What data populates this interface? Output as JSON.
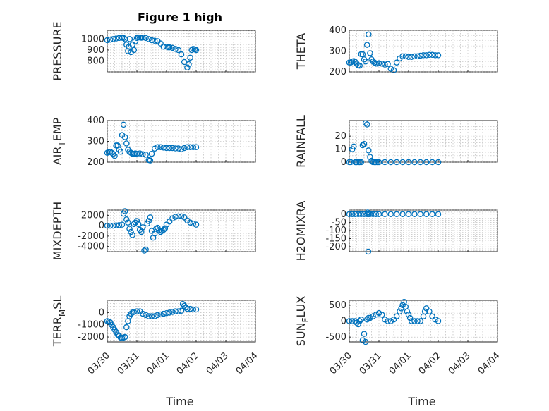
{
  "title": "Figure 1 high",
  "xlabel": "Time",
  "x_tick_labels": [
    "03/30",
    "03/31",
    "04/01",
    "04/02",
    "04/03",
    "04/04"
  ],
  "colors": {
    "marker": "#0072bd",
    "axis": "#262626",
    "grid": "#b0b0b0"
  },
  "chart_data": [
    {
      "type": "scatter",
      "panel": "PRESSURE",
      "ylabel": "PRESSURE",
      "ylabel_sub": "",
      "yticks": [
        800,
        900,
        1000
      ],
      "ytick_labels": [
        "800",
        "900",
        "1000"
      ],
      "ylim": [
        700,
        1080
      ],
      "xlim": [
        0,
        5
      ],
      "x": [
        0,
        0.1,
        0.2,
        0.3,
        0.4,
        0.5,
        0.55,
        0.6,
        0.65,
        0.7,
        0.73,
        0.76,
        0.8,
        0.85,
        0.9,
        0.95,
        1.0,
        1.05,
        1.1,
        1.15,
        1.2,
        1.3,
        1.4,
        1.5,
        1.6,
        1.7,
        1.8,
        1.9,
        2.0,
        2.05,
        2.1,
        2.2,
        2.3,
        2.4,
        2.5,
        2.6,
        2.7,
        2.75,
        2.8,
        2.85,
        2.9,
        2.95,
        3.0
      ],
      "y": [
        990,
        995,
        1000,
        1005,
        1010,
        1012,
        1010,
        1000,
        950,
        890,
        930,
        1000,
        880,
        950,
        900,
        980,
        1010,
        1015,
        1015,
        1012,
        1015,
        1010,
        1000,
        990,
        985,
        980,
        960,
        930,
        930,
        925,
        925,
        920,
        910,
        900,
        860,
        790,
        740,
        770,
        830,
        900,
        910,
        905,
        900
      ]
    },
    {
      "type": "scatter",
      "panel": "THETA",
      "ylabel": "THETA",
      "ylabel_sub": "",
      "yticks": [
        200,
        300,
        400
      ],
      "ytick_labels": [
        "200",
        "300",
        "400"
      ],
      "ylim": [
        200,
        400
      ],
      "xlim": [
        0,
        5
      ],
      "x": [
        0,
        0.05,
        0.1,
        0.15,
        0.2,
        0.25,
        0.3,
        0.35,
        0.4,
        0.45,
        0.5,
        0.55,
        0.6,
        0.65,
        0.7,
        0.75,
        0.8,
        0.85,
        0.9,
        0.95,
        1.0,
        1.1,
        1.2,
        1.3,
        1.4,
        1.5,
        1.6,
        1.7,
        1.8,
        1.9,
        2.0,
        2.1,
        2.2,
        2.3,
        2.4,
        2.5,
        2.6,
        2.7,
        2.8,
        2.9,
        3.0
      ],
      "y": [
        245,
        245,
        250,
        252,
        248,
        240,
        232,
        230,
        285,
        285,
        260,
        250,
        330,
        380,
        290,
        260,
        250,
        245,
        240,
        240,
        242,
        240,
        235,
        238,
        215,
        208,
        245,
        265,
        275,
        275,
        272,
        272,
        275,
        275,
        278,
        280,
        280,
        282,
        282,
        280,
        280
      ]
    },
    {
      "type": "scatter",
      "panel": "AIR_TEMP",
      "ylabel": "AIR",
      "ylabel_sub": "T",
      "ylabel_tail": "EMP",
      "yticks": [
        200,
        300,
        400
      ],
      "ytick_labels": [
        "200",
        "300",
        "400"
      ],
      "ylim": [
        200,
        400
      ],
      "xlim": [
        0,
        5
      ],
      "x": [
        0,
        0.05,
        0.1,
        0.15,
        0.2,
        0.25,
        0.3,
        0.35,
        0.4,
        0.45,
        0.5,
        0.55,
        0.6,
        0.65,
        0.7,
        0.75,
        0.8,
        0.85,
        0.9,
        0.95,
        1.0,
        1.1,
        1.2,
        1.3,
        1.4,
        1.45,
        1.5,
        1.6,
        1.7,
        1.8,
        1.9,
        2.0,
        2.1,
        2.2,
        2.3,
        2.4,
        2.5,
        2.6,
        2.7,
        2.8,
        2.9,
        3.0
      ],
      "y": [
        245,
        248,
        250,
        245,
        240,
        230,
        280,
        280,
        260,
        250,
        330,
        380,
        320,
        290,
        260,
        250,
        245,
        240,
        240,
        242,
        240,
        242,
        238,
        236,
        210,
        208,
        240,
        265,
        272,
        272,
        270,
        268,
        268,
        268,
        266,
        266,
        262,
        268,
        272,
        272,
        272,
        272
      ]
    },
    {
      "type": "scatter",
      "panel": "RAINFALL",
      "ylabel": "RAINFALL",
      "ylabel_sub": "",
      "yticks": [
        0,
        10,
        20
      ],
      "ytick_labels": [
        "0",
        "10",
        "20"
      ],
      "ylim": [
        0,
        32
      ],
      "xlim": [
        0,
        5
      ],
      "x": [
        0,
        0.05,
        0.1,
        0.15,
        0.2,
        0.25,
        0.3,
        0.35,
        0.4,
        0.45,
        0.5,
        0.55,
        0.6,
        0.65,
        0.7,
        0.75,
        0.8,
        0.85,
        0.9,
        0.95,
        1.0,
        1.2,
        1.4,
        1.6,
        1.8,
        2.0,
        2.2,
        2.4,
        2.6,
        2.8,
        3.0
      ],
      "y": [
        0,
        0,
        10,
        12,
        0,
        0,
        0,
        0,
        0,
        13,
        14,
        30,
        29,
        9,
        4,
        1,
        0,
        0,
        0,
        0,
        0,
        0,
        0,
        0,
        0,
        0,
        0,
        0,
        0,
        0,
        0
      ]
    },
    {
      "type": "scatter",
      "panel": "MIXDEPTH",
      "ylabel": "MIXDEPTH",
      "ylabel_sub": "",
      "yticks": [
        -4000,
        -2000,
        0,
        2000
      ],
      "ytick_labels": [
        "-4000",
        "-2000",
        "0",
        "2000"
      ],
      "ylim": [
        -5000,
        3000
      ],
      "xlim": [
        0,
        5
      ],
      "x": [
        0,
        0.1,
        0.2,
        0.3,
        0.4,
        0.5,
        0.55,
        0.6,
        0.65,
        0.7,
        0.75,
        0.8,
        0.85,
        0.9,
        0.95,
        1.0,
        1.05,
        1.1,
        1.15,
        1.2,
        1.25,
        1.3,
        1.35,
        1.4,
        1.45,
        1.5,
        1.55,
        1.6,
        1.65,
        1.7,
        1.75,
        1.8,
        1.85,
        1.9,
        1.95,
        2.0,
        2.1,
        2.2,
        2.3,
        2.4,
        2.5,
        2.6,
        2.7,
        2.8,
        2.9,
        3.0
      ],
      "y": [
        0,
        0,
        0,
        50,
        100,
        200,
        2300,
        2800,
        1200,
        600,
        -600,
        -1200,
        -1800,
        300,
        600,
        900,
        300,
        -800,
        -1200,
        -300,
        -4800,
        -4600,
        400,
        900,
        1600,
        -1000,
        -2300,
        -1500,
        -600,
        -400,
        -900,
        -1200,
        -1000,
        -800,
        -500,
        200,
        800,
        1400,
        1700,
        1800,
        1800,
        1600,
        1000,
        600,
        400,
        200
      ]
    },
    {
      "type": "scatter",
      "panel": "H2OMIXRA",
      "ylabel": "H2OMIXRA",
      "ylabel_sub": "",
      "yticks": [
        -200,
        -150,
        -100,
        -50,
        0
      ],
      "ytick_labels": [
        "-200",
        "-150",
        "-100",
        "-50",
        "0"
      ],
      "ylim": [
        -230,
        25
      ],
      "xlim": [
        0,
        5
      ],
      "x": [
        0,
        0.1,
        0.2,
        0.3,
        0.4,
        0.5,
        0.6,
        0.62,
        0.64,
        0.66,
        0.7,
        0.8,
        0.9,
        1.0,
        1.2,
        1.4,
        1.6,
        1.8,
        2.0,
        2.2,
        2.4,
        2.6,
        2.8,
        3.0
      ],
      "y": [
        0,
        0,
        0,
        0,
        0,
        0,
        0,
        10,
        -230,
        0,
        0,
        0,
        0,
        0,
        0,
        0,
        0,
        0,
        0,
        0,
        0,
        0,
        0,
        0
      ]
    },
    {
      "type": "scatter",
      "panel": "TERR_MSL",
      "ylabel": "TERR",
      "ylabel_sub": "M",
      "ylabel_tail": "SL",
      "yticks": [
        -2000,
        -1000,
        0
      ],
      "ytick_labels": [
        "-2000",
        "-1000",
        "0"
      ],
      "ylim": [
        -2400,
        1000
      ],
      "xlim": [
        0,
        5
      ],
      "x": [
        0,
        0.05,
        0.1,
        0.15,
        0.2,
        0.25,
        0.3,
        0.35,
        0.4,
        0.45,
        0.5,
        0.55,
        0.6,
        0.65,
        0.7,
        0.75,
        0.8,
        0.85,
        0.9,
        1.0,
        1.1,
        1.2,
        1.3,
        1.4,
        1.5,
        1.6,
        1.7,
        1.8,
        1.9,
        2.0,
        2.1,
        2.2,
        2.3,
        2.4,
        2.5,
        2.55,
        2.6,
        2.65,
        2.7,
        2.8,
        2.9,
        3.0
      ],
      "y": [
        -700,
        -750,
        -800,
        -1000,
        -1200,
        -1400,
        -1600,
        -1800,
        -1900,
        -2050,
        -2100,
        -2050,
        -2000,
        -1200,
        -700,
        -300,
        -100,
        0,
        50,
        100,
        100,
        -100,
        -200,
        -300,
        -300,
        -300,
        -200,
        -150,
        -100,
        -50,
        0,
        50,
        100,
        100,
        150,
        700,
        550,
        400,
        300,
        300,
        250,
        250
      ]
    },
    {
      "type": "scatter",
      "panel": "SUN_FLUX",
      "ylabel": "SUN",
      "ylabel_sub": "F",
      "ylabel_tail": "LUX",
      "yticks": [
        -500,
        0,
        500
      ],
      "ytick_labels": [
        "-500",
        "0",
        "500"
      ],
      "ylim": [
        -650,
        650
      ],
      "xlim": [
        0,
        5
      ],
      "x": [
        0,
        0.1,
        0.2,
        0.25,
        0.3,
        0.35,
        0.4,
        0.45,
        0.5,
        0.55,
        0.6,
        0.65,
        0.7,
        0.8,
        0.9,
        1.0,
        1.1,
        1.2,
        1.3,
        1.4,
        1.5,
        1.6,
        1.7,
        1.75,
        1.8,
        1.85,
        1.9,
        1.95,
        2.0,
        2.05,
        2.1,
        2.2,
        2.3,
        2.4,
        2.5,
        2.55,
        2.6,
        2.7,
        2.8,
        2.9,
        3.0
      ],
      "y": [
        0,
        0,
        0,
        -50,
        -100,
        0,
        50,
        -600,
        -400,
        -650,
        50,
        100,
        100,
        150,
        200,
        250,
        200,
        50,
        0,
        0,
        50,
        150,
        300,
        400,
        500,
        600,
        450,
        300,
        200,
        100,
        0,
        0,
        0,
        0,
        150,
        300,
        400,
        300,
        150,
        50,
        0
      ]
    }
  ]
}
